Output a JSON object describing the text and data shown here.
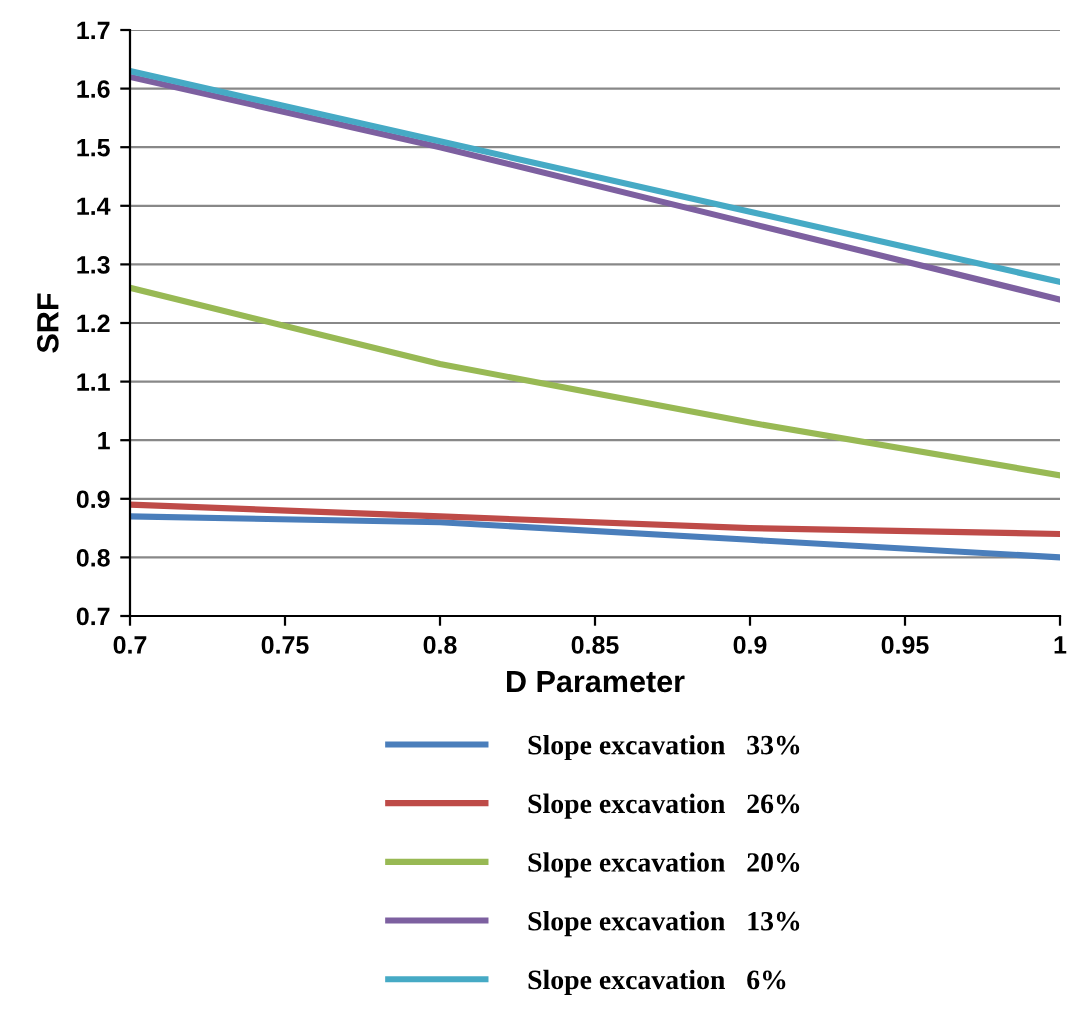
{
  "chart_data": {
    "type": "line",
    "xlabel": "D Parameter",
    "ylabel": "SRF",
    "x": [
      0.7,
      0.8,
      0.9,
      1.0
    ],
    "series": [
      {
        "name": "Slope excavation   33%",
        "color": "#4a7ebb",
        "values": [
          0.87,
          0.86,
          0.83,
          0.8
        ]
      },
      {
        "name": "Slope excavation   26%",
        "color": "#be4b48",
        "values": [
          0.89,
          0.87,
          0.85,
          0.84
        ]
      },
      {
        "name": "Slope excavation   20%",
        "color": "#98b954",
        "values": [
          1.26,
          1.13,
          1.03,
          0.94
        ]
      },
      {
        "name": "Slope excavation   13%",
        "color": "#7d60a0",
        "values": [
          1.62,
          1.5,
          1.37,
          1.24
        ]
      },
      {
        "name": "Slope excavation   6%",
        "color": "#46aac5",
        "values": [
          1.63,
          1.51,
          1.39,
          1.27
        ]
      }
    ],
    "xlim": [
      0.7,
      1.0
    ],
    "xticks": [
      0.7,
      0.75,
      0.8,
      0.85,
      0.9,
      0.95,
      1
    ],
    "ylim": [
      0.7,
      1.7
    ],
    "yticks": [
      0.7,
      0.8,
      0.9,
      1,
      1.1,
      1.2,
      1.3,
      1.4,
      1.5,
      1.6,
      1.7
    ],
    "grid": "y",
    "legend": "bottom",
    "marker": "none",
    "line_style": "solid"
  }
}
